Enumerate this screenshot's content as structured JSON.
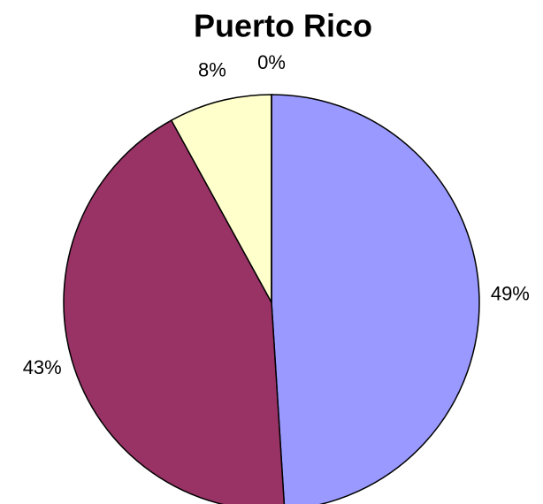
{
  "chart_data": {
    "type": "pie",
    "title": "Puerto Rico",
    "values": [
      49,
      43,
      8,
      0
    ],
    "value_labels": [
      "49%",
      "43%",
      "8%",
      "0%"
    ],
    "colors": [
      "#9999ff",
      "#993366",
      "#ffffcc",
      "#ccffff"
    ]
  }
}
